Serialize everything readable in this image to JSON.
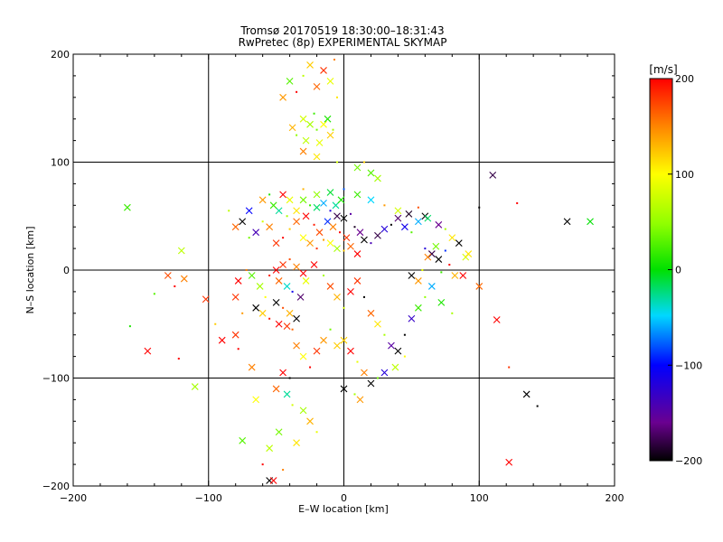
{
  "title": "Tromsø 20170519 18:30:00–18:31:43",
  "subtitle": "RwPretec (8p) EXPERIMENTAL SKYMAP",
  "chart_data": {
    "type": "scatter",
    "xlabel": "E–W location [km]",
    "ylabel": "N–S location [km]",
    "xlim": [
      -200,
      200
    ],
    "ylim": [
      -200,
      200
    ],
    "xticks": [
      -200,
      -100,
      0,
      100,
      200
    ],
    "yticks": [
      -200,
      -100,
      0,
      100,
      200
    ],
    "xtick_labels": [
      "−200",
      "−100",
      "0",
      "100",
      "200"
    ],
    "ytick_labels": [
      "−200",
      "−100",
      "0",
      "100",
      "200"
    ],
    "grid": true,
    "colorbar": {
      "label": "[m/s]",
      "range": [
        -200,
        200
      ],
      "ticks": [
        -200,
        -100,
        0,
        100,
        200
      ],
      "tick_labels": [
        "−200",
        "−100",
        "0",
        "100",
        "200"
      ],
      "colormap": "rainbow (black-purple-blue-cyan-green-yellow-orange-red)"
    },
    "points": [
      [
        -7,
        195,
        150
      ],
      [
        -15,
        185,
        180
      ],
      [
        -25,
        190,
        120
      ],
      [
        -30,
        180,
        70
      ],
      [
        -20,
        170,
        160
      ],
      [
        -10,
        175,
        90
      ],
      [
        -35,
        165,
        200
      ],
      [
        -45,
        160,
        140
      ],
      [
        -40,
        175,
        30
      ],
      [
        -5,
        160,
        110
      ],
      [
        -30,
        140,
        80
      ],
      [
        -25,
        135,
        60
      ],
      [
        -20,
        130,
        40
      ],
      [
        -15,
        135,
        100
      ],
      [
        -10,
        125,
        120
      ],
      [
        -35,
        125,
        50
      ],
      [
        -28,
        120,
        70
      ],
      [
        -18,
        118,
        90
      ],
      [
        -22,
        145,
        20
      ],
      [
        -12,
        140,
        10
      ],
      [
        -38,
        132,
        130
      ],
      [
        -8,
        130,
        60
      ],
      [
        -30,
        110,
        150
      ],
      [
        -20,
        105,
        110
      ],
      [
        -5,
        100,
        80
      ],
      [
        10,
        95,
        40
      ],
      [
        20,
        90,
        30
      ],
      [
        15,
        100,
        120
      ],
      [
        25,
        85,
        60
      ],
      [
        -30,
        65,
        40
      ],
      [
        -25,
        60,
        20
      ],
      [
        -20,
        58,
        -20
      ],
      [
        -15,
        62,
        -60
      ],
      [
        -10,
        55,
        -120
      ],
      [
        -5,
        50,
        -180
      ],
      [
        0,
        48,
        -200
      ],
      [
        5,
        52,
        -150
      ],
      [
        -12,
        45,
        -90
      ],
      [
        -8,
        40,
        150
      ],
      [
        -3,
        35,
        200
      ],
      [
        2,
        30,
        180
      ],
      [
        -18,
        35,
        170
      ],
      [
        -22,
        42,
        190
      ],
      [
        -28,
        50,
        200
      ],
      [
        -35,
        45,
        160
      ],
      [
        -40,
        38,
        120
      ],
      [
        -6,
        60,
        -30
      ],
      [
        -2,
        65,
        10
      ],
      [
        8,
        40,
        -190
      ],
      [
        12,
        35,
        -160
      ],
      [
        15,
        28,
        -200
      ],
      [
        20,
        25,
        -140
      ],
      [
        25,
        32,
        -180
      ],
      [
        30,
        38,
        -120
      ],
      [
        35,
        42,
        -200
      ],
      [
        40,
        48,
        -170
      ],
      [
        45,
        40,
        -110
      ],
      [
        50,
        35,
        30
      ],
      [
        55,
        45,
        -60
      ],
      [
        60,
        50,
        -200
      ],
      [
        -15,
        28,
        140
      ],
      [
        -10,
        25,
        100
      ],
      [
        -5,
        20,
        60
      ],
      [
        0,
        18,
        120
      ],
      [
        5,
        22,
        160
      ],
      [
        10,
        15,
        200
      ],
      [
        -20,
        20,
        180
      ],
      [
        -25,
        25,
        140
      ],
      [
        -30,
        30,
        100
      ],
      [
        -45,
        30,
        200
      ],
      [
        -50,
        25,
        180
      ],
      [
        -55,
        40,
        150
      ],
      [
        -60,
        45,
        80
      ],
      [
        -48,
        55,
        -30
      ],
      [
        -52,
        60,
        20
      ],
      [
        -42,
        50,
        60
      ],
      [
        -35,
        55,
        110
      ],
      [
        -65,
        35,
        -140
      ],
      [
        -70,
        30,
        40
      ],
      [
        -75,
        45,
        -200
      ],
      [
        -80,
        40,
        160
      ],
      [
        -85,
        55,
        70
      ],
      [
        -70,
        55,
        -100
      ],
      [
        -60,
        65,
        140
      ],
      [
        -55,
        70,
        10
      ],
      [
        -45,
        70,
        200
      ],
      [
        -40,
        65,
        90
      ],
      [
        -30,
        75,
        130
      ],
      [
        -20,
        70,
        50
      ],
      [
        -10,
        72,
        -10
      ],
      [
        0,
        75,
        -80
      ],
      [
        10,
        70,
        20
      ],
      [
        20,
        65,
        -50
      ],
      [
        30,
        60,
        140
      ],
      [
        40,
        55,
        80
      ],
      [
        48,
        52,
        -190
      ],
      [
        55,
        58,
        170
      ],
      [
        62,
        48,
        -20
      ],
      [
        70,
        42,
        -160
      ],
      [
        75,
        38,
        60
      ],
      [
        80,
        30,
        110
      ],
      [
        85,
        25,
        -200
      ],
      [
        60,
        20,
        -120
      ],
      [
        65,
        15,
        -180
      ],
      [
        70,
        10,
        -200
      ],
      [
        75,
        18,
        -90
      ],
      [
        68,
        22,
        40
      ],
      [
        62,
        12,
        150
      ],
      [
        78,
        5,
        200
      ],
      [
        90,
        12,
        80
      ],
      [
        82,
        -5,
        130
      ],
      [
        72,
        -2,
        20
      ],
      [
        -50,
        0,
        200
      ],
      [
        -45,
        5,
        180
      ],
      [
        -40,
        10,
        170
      ],
      [
        -35,
        3,
        150
      ],
      [
        -30,
        -3,
        200
      ],
      [
        -55,
        -5,
        190
      ],
      [
        -48,
        -10,
        160
      ],
      [
        -42,
        -15,
        -40
      ],
      [
        -38,
        -20,
        -110
      ],
      [
        -32,
        -25,
        -170
      ],
      [
        -50,
        -30,
        -200
      ],
      [
        -45,
        -35,
        170
      ],
      [
        -40,
        -40,
        130
      ],
      [
        -35,
        -45,
        -200
      ],
      [
        -55,
        -45,
        190
      ],
      [
        -48,
        -50,
        200
      ],
      [
        -42,
        -52,
        180
      ],
      [
        -38,
        -55,
        160
      ],
      [
        -60,
        -40,
        120
      ],
      [
        -65,
        -35,
        -200
      ],
      [
        -58,
        -25,
        100
      ],
      [
        -62,
        -15,
        60
      ],
      [
        -68,
        -5,
        30
      ],
      [
        -72,
        0,
        150
      ],
      [
        -78,
        -10,
        200
      ],
      [
        -80,
        -25,
        180
      ],
      [
        -75,
        -40,
        140
      ],
      [
        -28,
        -10,
        90
      ],
      [
        -22,
        5,
        200
      ],
      [
        -15,
        -5,
        60
      ],
      [
        -10,
        -15,
        170
      ],
      [
        -5,
        -25,
        130
      ],
      [
        0,
        -35,
        80
      ],
      [
        5,
        -20,
        200
      ],
      [
        10,
        -10,
        180
      ],
      [
        15,
        -25,
        -200
      ],
      [
        20,
        -40,
        160
      ],
      [
        25,
        -50,
        110
      ],
      [
        30,
        -60,
        60
      ],
      [
        35,
        -70,
        -150
      ],
      [
        40,
        -75,
        -200
      ],
      [
        45,
        -80,
        100
      ],
      [
        38,
        -90,
        70
      ],
      [
        30,
        -95,
        -120
      ],
      [
        25,
        -100,
        40
      ],
      [
        20,
        -105,
        -200
      ],
      [
        15,
        -95,
        150
      ],
      [
        10,
        -85,
        90
      ],
      [
        5,
        -75,
        200
      ],
      [
        0,
        -65,
        120
      ],
      [
        45,
        -60,
        -200
      ],
      [
        50,
        -45,
        -130
      ],
      [
        55,
        -35,
        20
      ],
      [
        60,
        -25,
        50
      ],
      [
        65,
        -15,
        -60
      ],
      [
        72,
        -30,
        10
      ],
      [
        80,
        -40,
        60
      ],
      [
        50,
        -5,
        -200
      ],
      [
        55,
        -10,
        140
      ],
      [
        58,
        0,
        90
      ],
      [
        -35,
        -70,
        150
      ],
      [
        -30,
        -80,
        100
      ],
      [
        -25,
        -90,
        200
      ],
      [
        -20,
        -75,
        180
      ],
      [
        -15,
        -65,
        140
      ],
      [
        -10,
        -55,
        40
      ],
      [
        -5,
        -70,
        120
      ],
      [
        -45,
        -95,
        200
      ],
      [
        -40,
        -100,
        -200
      ],
      [
        -50,
        -110,
        160
      ],
      [
        -42,
        -115,
        -30
      ],
      [
        -38,
        -125,
        80
      ],
      [
        -30,
        -130,
        60
      ],
      [
        -25,
        -140,
        130
      ],
      [
        -20,
        -150,
        90
      ],
      [
        -48,
        -150,
        40
      ],
      [
        -55,
        -165,
        70
      ],
      [
        -60,
        -180,
        200
      ],
      [
        -55,
        -195,
        -200
      ],
      [
        -52,
        -195,
        200
      ],
      [
        -45,
        -185,
        150
      ],
      [
        -35,
        -160,
        110
      ],
      [
        0,
        -110,
        -200
      ],
      [
        8,
        -115,
        60
      ],
      [
        12,
        -120,
        140
      ],
      [
        -160,
        58,
        20
      ],
      [
        -158,
        -52,
        10
      ],
      [
        -145,
        -75,
        200
      ],
      [
        -130,
        -5,
        170
      ],
      [
        -125,
        -15,
        200
      ],
      [
        -120,
        18,
        70
      ],
      [
        -118,
        -8,
        150
      ],
      [
        -122,
        -82,
        200
      ],
      [
        -110,
        -108,
        60
      ],
      [
        -102,
        -27,
        180
      ],
      [
        -95,
        -50,
        120
      ],
      [
        -90,
        -65,
        200
      ],
      [
        -80,
        -60,
        180
      ],
      [
        -78,
        -73,
        200
      ],
      [
        -68,
        -90,
        150
      ],
      [
        -65,
        -120,
        100
      ],
      [
        -140,
        -22,
        30
      ],
      [
        -75,
        -158,
        30
      ],
      [
        110,
        88,
        -180
      ],
      [
        128,
        62,
        200
      ],
      [
        165,
        45,
        -200
      ],
      [
        182,
        45,
        0
      ],
      [
        122,
        -90,
        180
      ],
      [
        113,
        -46,
        200
      ],
      [
        135,
        -115,
        -200
      ],
      [
        143,
        -126,
        -200
      ],
      [
        122,
        -178,
        200
      ],
      [
        100,
        -15,
        160
      ],
      [
        100,
        58,
        -200
      ],
      [
        92,
        15,
        110
      ],
      [
        88,
        -5,
        200
      ]
    ]
  }
}
